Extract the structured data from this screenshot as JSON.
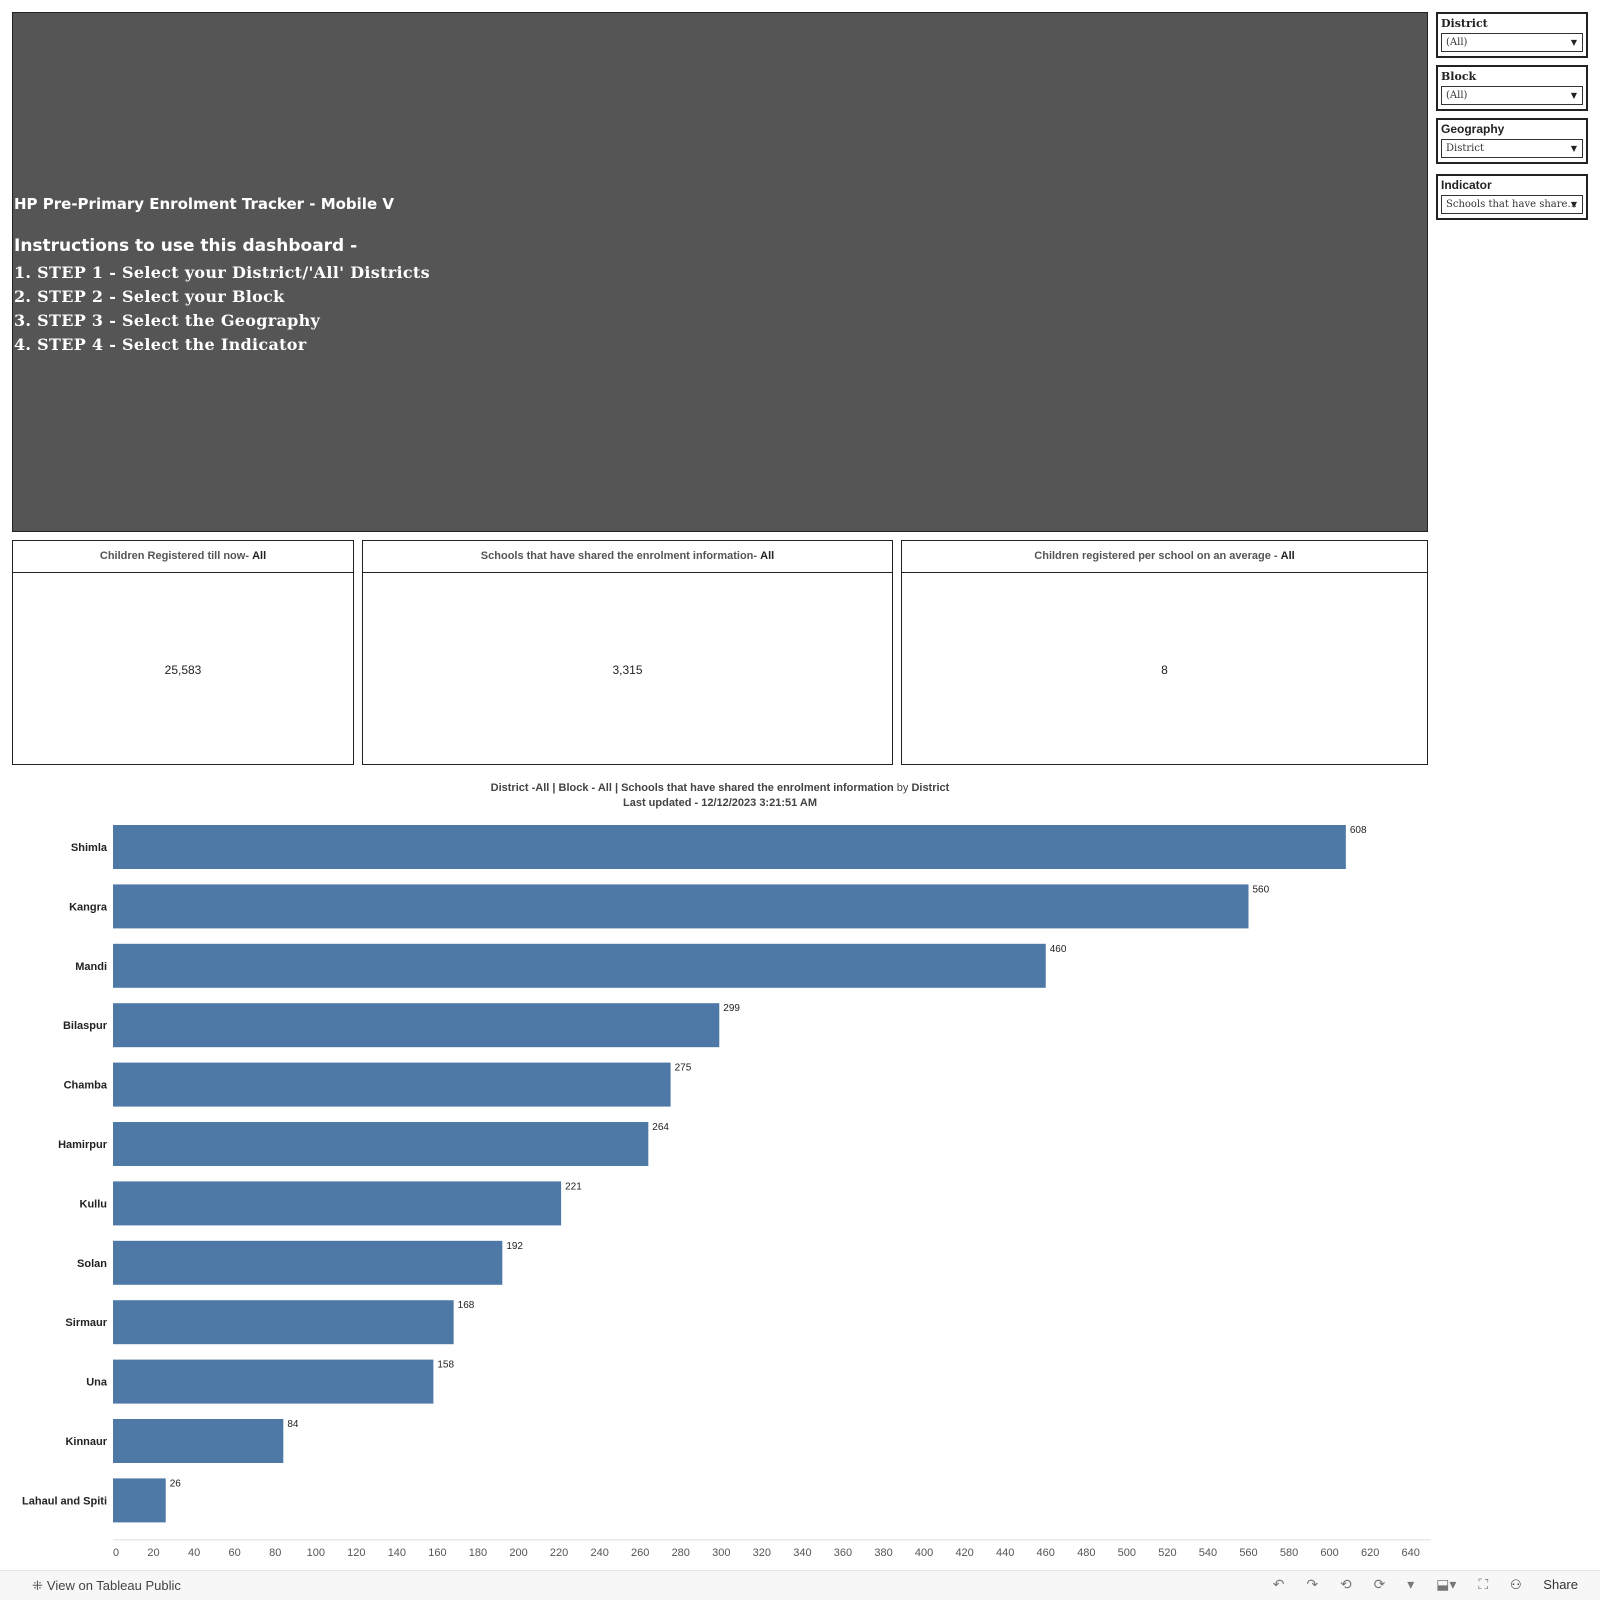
{
  "header": {
    "title": "HP Pre-Primary Enrolment Tracker - Mobile V",
    "instructions_heading": "Instructions to use this dashboard -",
    "steps": [
      "1. STEP 1 - Select your District/'All' Districts",
      "2. STEP 2 - Select your Block",
      "3. STEP 3 - Select the Geography",
      "4. STEP 4 - Select the Indicator"
    ]
  },
  "filters": {
    "district": {
      "label": "District",
      "value": "(All)"
    },
    "block": {
      "label": "Block",
      "value": "(All)"
    },
    "geography": {
      "label": "Geography",
      "value": "District"
    },
    "indicator": {
      "label": "Indicator",
      "value": "Schools that have share..."
    }
  },
  "kpis": [
    {
      "label": "Children Registered till now- ",
      "scope": "All",
      "value": "25,583"
    },
    {
      "label": "Schools that have shared the enrolment information- ",
      "scope": "All",
      "value": "3,315"
    },
    {
      "label": "Children registered per school on an average - ",
      "scope": "All",
      "value": "8"
    }
  ],
  "chart_header": {
    "line1_a": "District  -All | Block - All | Schools that have shared the enrolment information",
    "line1_by": "by",
    "line1_b": "District",
    "line2": "Last updated  - 12/12/2023 3:21:51 AM"
  },
  "chart_data": {
    "type": "bar",
    "orientation": "horizontal",
    "categories": [
      "Shimla",
      "Kangra",
      "Mandi",
      "Bilaspur",
      "Chamba",
      "Hamirpur",
      "Kullu",
      "Solan",
      "Sirmaur",
      "Una",
      "Kinnaur",
      "Lahaul and Spiti"
    ],
    "values": [
      608,
      560,
      460,
      299,
      275,
      264,
      221,
      192,
      168,
      158,
      84,
      26
    ],
    "xlim": [
      0,
      650
    ],
    "xticks": [
      0,
      20,
      40,
      60,
      80,
      100,
      120,
      140,
      160,
      180,
      200,
      220,
      240,
      260,
      280,
      300,
      320,
      340,
      360,
      380,
      400,
      420,
      440,
      460,
      480,
      500,
      520,
      540,
      560,
      580,
      600,
      620,
      640
    ],
    "color": "#4e79a7",
    "data_labels": true,
    "grid": false
  },
  "footer": {
    "view_label": "View on Tableau Public",
    "share_label": "Share"
  }
}
